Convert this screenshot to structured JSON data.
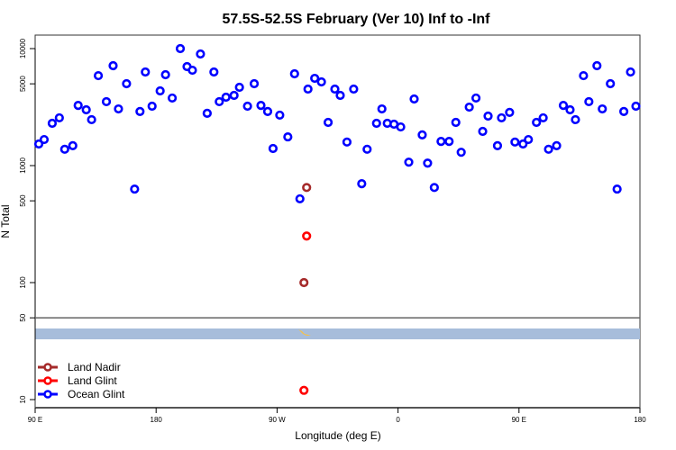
{
  "chart_data": {
    "type": "scatter",
    "title": "57.5S-52.5S February (Ver 10)   Inf to -Inf",
    "xlabel": "Longitude (deg E)",
    "ylabel": "N Total",
    "x_note": "longitude unwrapped, 90 to 540 deg E",
    "xlim": [
      90,
      540
    ],
    "ylog": true,
    "ylim": [
      8.5,
      13000
    ],
    "xticks": [
      {
        "value": 90,
        "label": "90 E"
      },
      {
        "value": 180,
        "label": "180"
      },
      {
        "value": 270,
        "label": "90 W"
      },
      {
        "value": 360,
        "label": "0"
      },
      {
        "value": 450,
        "label": "90 E"
      },
      {
        "value": 540,
        "label": "180"
      }
    ],
    "yticks": [
      {
        "value": 10000,
        "label": "10000"
      },
      {
        "value": 5000,
        "label": "5000"
      },
      {
        "value": 1000,
        "label": "1000"
      },
      {
        "value": 500,
        "label": "500"
      },
      {
        "value": 100,
        "label": "100"
      },
      {
        "value": 50,
        "label": "50"
      },
      {
        "value": 10,
        "label": "10"
      }
    ],
    "reference_line": 50,
    "legend_position": "bottom-left",
    "series": [
      {
        "name": "Land Nadir",
        "color": "#a52a2a",
        "x": [
          292,
          290
        ],
        "y": [
          650,
          100
        ]
      },
      {
        "name": "Land Glint",
        "color": "#ff0000",
        "x": [
          292,
          290
        ],
        "y": [
          250,
          12
        ]
      },
      {
        "name": "Ocean Glint",
        "color": "#0000ff",
        "x": [
          92.7,
          96.7,
          102.7,
          108,
          112,
          118,
          122,
          128,
          132,
          137,
          143,
          148,
          152,
          158,
          164,
          168,
          172,
          177,
          183,
          187,
          192,
          198,
          203,
          207,
          213,
          218,
          223,
          227,
          232,
          238,
          242,
          248,
          253,
          258,
          263,
          267,
          272,
          278,
          283,
          287,
          293,
          298,
          303,
          308,
          313,
          317,
          322,
          327,
          333,
          337,
          344,
          348,
          352,
          357,
          362,
          368,
          372,
          378,
          382,
          387,
          392,
          398,
          403,
          407,
          413,
          418,
          423,
          427,
          434,
          437,
          443,
          447,
          453,
          457,
          463,
          468,
          472,
          478,
          483,
          488,
          492,
          498,
          502,
          508,
          512,
          518,
          523,
          528,
          533,
          537
        ],
        "y": [
          1530,
          1670,
          2300,
          2560,
          1380,
          1480,
          3270,
          3000,
          2470,
          5870,
          3520,
          7140,
          3050,
          5010,
          630,
          2900,
          6310,
          3220,
          4350,
          5980,
          3780,
          10000,
          7020,
          6530,
          8990,
          2800,
          6310,
          3520,
          3840,
          3980,
          4670,
          3220,
          5010,
          3270,
          2900,
          1400,
          2700,
          1760,
          6090,
          520,
          4510,
          5570,
          5190,
          2340,
          4510,
          3980,
          1590,
          4510,
          700,
          1380,
          2300,
          3050,
          2300,
          2260,
          2140,
          1070,
          3710,
          1830,
          1050,
          650,
          1610,
          1610,
          2340,
          1300,
          3160,
          3780,
          1960,
          2650,
          1480,
          2560,
          2850,
          1590,
          1530,
          1670,
          2340,
          2560,
          1380,
          1480,
          3270,
          3000,
          2470,
          5870,
          3520,
          7140,
          3050,
          5010,
          630,
          2900,
          6310,
          3220
        ]
      }
    ]
  }
}
